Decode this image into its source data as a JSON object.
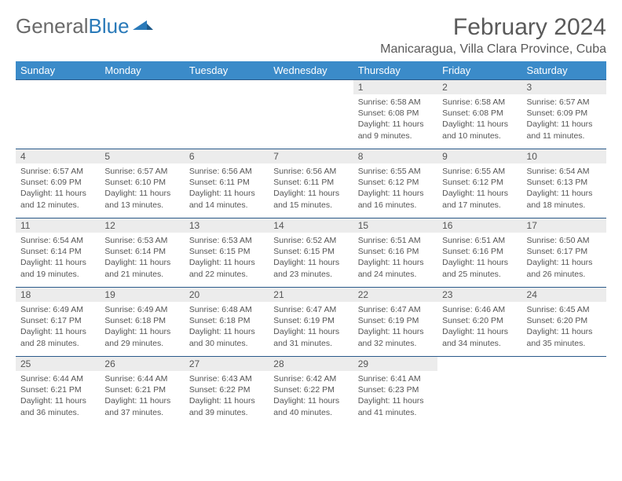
{
  "logo": {
    "text1": "General",
    "text2": "Blue"
  },
  "header": {
    "month_title": "February 2024",
    "location": "Manicaragua, Villa Clara Province, Cuba"
  },
  "colors": {
    "header_bg": "#3b8bc9",
    "header_text": "#ffffff",
    "daynum_bg": "#ececec",
    "border": "#2a5a8a",
    "text": "#555555",
    "logo_gray": "#6a6a6a",
    "logo_blue": "#2a7ab9",
    "page_bg": "#ffffff"
  },
  "typography": {
    "month_title_fontsize": 30,
    "location_fontsize": 16,
    "dayheader_fontsize": 13,
    "daynum_fontsize": 12,
    "body_fontsize": 10.5
  },
  "calendar": {
    "type": "table",
    "columns": [
      "Sunday",
      "Monday",
      "Tuesday",
      "Wednesday",
      "Thursday",
      "Friday",
      "Saturday"
    ],
    "leading_blanks": 4,
    "days": [
      {
        "n": "1",
        "sunrise": "6:58 AM",
        "sunset": "6:08 PM",
        "daylight": "11 hours and 9 minutes."
      },
      {
        "n": "2",
        "sunrise": "6:58 AM",
        "sunset": "6:08 PM",
        "daylight": "11 hours and 10 minutes."
      },
      {
        "n": "3",
        "sunrise": "6:57 AM",
        "sunset": "6:09 PM",
        "daylight": "11 hours and 11 minutes."
      },
      {
        "n": "4",
        "sunrise": "6:57 AM",
        "sunset": "6:09 PM",
        "daylight": "11 hours and 12 minutes."
      },
      {
        "n": "5",
        "sunrise": "6:57 AM",
        "sunset": "6:10 PM",
        "daylight": "11 hours and 13 minutes."
      },
      {
        "n": "6",
        "sunrise": "6:56 AM",
        "sunset": "6:11 PM",
        "daylight": "11 hours and 14 minutes."
      },
      {
        "n": "7",
        "sunrise": "6:56 AM",
        "sunset": "6:11 PM",
        "daylight": "11 hours and 15 minutes."
      },
      {
        "n": "8",
        "sunrise": "6:55 AM",
        "sunset": "6:12 PM",
        "daylight": "11 hours and 16 minutes."
      },
      {
        "n": "9",
        "sunrise": "6:55 AM",
        "sunset": "6:12 PM",
        "daylight": "11 hours and 17 minutes."
      },
      {
        "n": "10",
        "sunrise": "6:54 AM",
        "sunset": "6:13 PM",
        "daylight": "11 hours and 18 minutes."
      },
      {
        "n": "11",
        "sunrise": "6:54 AM",
        "sunset": "6:14 PM",
        "daylight": "11 hours and 19 minutes."
      },
      {
        "n": "12",
        "sunrise": "6:53 AM",
        "sunset": "6:14 PM",
        "daylight": "11 hours and 21 minutes."
      },
      {
        "n": "13",
        "sunrise": "6:53 AM",
        "sunset": "6:15 PM",
        "daylight": "11 hours and 22 minutes."
      },
      {
        "n": "14",
        "sunrise": "6:52 AM",
        "sunset": "6:15 PM",
        "daylight": "11 hours and 23 minutes."
      },
      {
        "n": "15",
        "sunrise": "6:51 AM",
        "sunset": "6:16 PM",
        "daylight": "11 hours and 24 minutes."
      },
      {
        "n": "16",
        "sunrise": "6:51 AM",
        "sunset": "6:16 PM",
        "daylight": "11 hours and 25 minutes."
      },
      {
        "n": "17",
        "sunrise": "6:50 AM",
        "sunset": "6:17 PM",
        "daylight": "11 hours and 26 minutes."
      },
      {
        "n": "18",
        "sunrise": "6:49 AM",
        "sunset": "6:17 PM",
        "daylight": "11 hours and 28 minutes."
      },
      {
        "n": "19",
        "sunrise": "6:49 AM",
        "sunset": "6:18 PM",
        "daylight": "11 hours and 29 minutes."
      },
      {
        "n": "20",
        "sunrise": "6:48 AM",
        "sunset": "6:18 PM",
        "daylight": "11 hours and 30 minutes."
      },
      {
        "n": "21",
        "sunrise": "6:47 AM",
        "sunset": "6:19 PM",
        "daylight": "11 hours and 31 minutes."
      },
      {
        "n": "22",
        "sunrise": "6:47 AM",
        "sunset": "6:19 PM",
        "daylight": "11 hours and 32 minutes."
      },
      {
        "n": "23",
        "sunrise": "6:46 AM",
        "sunset": "6:20 PM",
        "daylight": "11 hours and 34 minutes."
      },
      {
        "n": "24",
        "sunrise": "6:45 AM",
        "sunset": "6:20 PM",
        "daylight": "11 hours and 35 minutes."
      },
      {
        "n": "25",
        "sunrise": "6:44 AM",
        "sunset": "6:21 PM",
        "daylight": "11 hours and 36 minutes."
      },
      {
        "n": "26",
        "sunrise": "6:44 AM",
        "sunset": "6:21 PM",
        "daylight": "11 hours and 37 minutes."
      },
      {
        "n": "27",
        "sunrise": "6:43 AM",
        "sunset": "6:22 PM",
        "daylight": "11 hours and 39 minutes."
      },
      {
        "n": "28",
        "sunrise": "6:42 AM",
        "sunset": "6:22 PM",
        "daylight": "11 hours and 40 minutes."
      },
      {
        "n": "29",
        "sunrise": "6:41 AM",
        "sunset": "6:23 PM",
        "daylight": "11 hours and 41 minutes."
      }
    ],
    "labels": {
      "sunrise": "Sunrise:",
      "sunset": "Sunset:",
      "daylight": "Daylight:"
    }
  }
}
